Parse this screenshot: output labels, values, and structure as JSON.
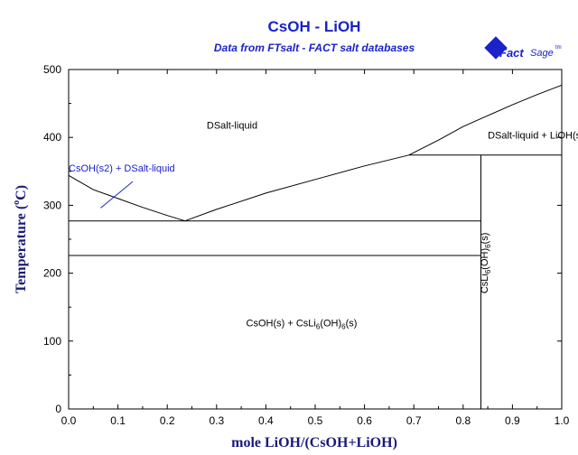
{
  "chart_data": {
    "type": "line",
    "title": "CsOH - LiOH",
    "subtitle": "Data from FTsalt - FACT salt databases",
    "xlabel": "mole LiOH/(CsOH+LiOH)",
    "ylabel": "Temperature (°C)",
    "ylabel_parts": {
      "main": "Temperature (",
      "degree": "o",
      "unit": "C)"
    },
    "xlim": [
      0,
      1
    ],
    "ylim": [
      0,
      500
    ],
    "x_ticks": [
      0.0,
      0.1,
      0.2,
      0.3,
      0.4,
      0.5,
      0.6,
      0.7,
      0.8,
      0.9,
      1.0
    ],
    "x_tick_labels": [
      "0.0",
      "0.1",
      "0.2",
      "0.3",
      "0.4",
      "0.5",
      "0.6",
      "0.7",
      "0.8",
      "0.9",
      "1.0"
    ],
    "y_ticks": [
      0,
      100,
      200,
      300,
      400,
      500
    ],
    "y_tick_labels": [
      "0",
      "100",
      "200",
      "300",
      "400",
      "500"
    ],
    "grid": false,
    "legend": "none",
    "series": [
      {
        "values": [
          [
            0.0,
            344
          ],
          [
            0.05,
            323
          ],
          [
            0.1,
            310
          ],
          [
            0.15,
            297
          ],
          [
            0.2,
            285
          ],
          [
            0.236,
            277
          ]
        ]
      },
      {
        "values": [
          [
            0.236,
            277
          ],
          [
            0.3,
            294
          ],
          [
            0.4,
            318
          ],
          [
            0.5,
            338
          ],
          [
            0.6,
            358
          ],
          [
            0.69,
            374
          ]
        ]
      },
      {
        "values": [
          [
            0.69,
            374
          ],
          [
            0.75,
            396
          ],
          [
            0.8,
            416
          ],
          [
            0.85,
            432
          ],
          [
            0.9,
            448
          ],
          [
            0.95,
            463
          ],
          [
            1.0,
            477
          ]
        ]
      },
      {
        "values": [
          [
            0.0,
            277
          ],
          [
            0.836,
            277
          ]
        ]
      },
      {
        "values": [
          [
            0.0,
            226
          ],
          [
            0.836,
            226
          ]
        ]
      },
      {
        "values": [
          [
            0.69,
            374
          ],
          [
            1.0,
            374
          ]
        ]
      },
      {
        "values": [
          [
            0.836,
            0
          ],
          [
            0.836,
            374
          ]
        ]
      }
    ],
    "annotations": [
      {
        "text": "DSalt-liquid",
        "x": 0.28,
        "y": 413,
        "color": "#000000"
      },
      {
        "text": "CsOH(s2) + DSalt-liquid",
        "x": 0.0,
        "y": 350,
        "color": "#1a22c8"
      },
      {
        "text": "DSalt-liquid + LiOH(s)",
        "x": 0.85,
        "y": 398,
        "color": "#000000"
      },
      {
        "text": "CsOH(s) + CsLi6(OH)6(s)",
        "x": 0.36,
        "y": 122,
        "color": "#000000",
        "formula": {
          "pre": "CsOH(s) + CsLi",
          "s1": "6",
          "mid": "(OH)",
          "s2": "6",
          "post": "(s)"
        }
      },
      {
        "text": "CsLi6(OH)6(s)",
        "x": 0.85,
        "y": 170,
        "color": "#000000",
        "rotate": -90,
        "formula": {
          "pre": "CsLi",
          "s1": "6",
          "mid": "(OH)",
          "s2": "6",
          "post": "(s)"
        }
      }
    ],
    "pointer": {
      "from": [
        0.065,
        296
      ],
      "to": [
        0.13,
        335
      ]
    },
    "colors": {
      "title": "#1a22c8",
      "axis_label": "#1a1a7a",
      "lines": "#000000"
    }
  },
  "logo": {
    "brand": "Fact",
    "brand2": "Sage",
    "tm": "tm"
  }
}
